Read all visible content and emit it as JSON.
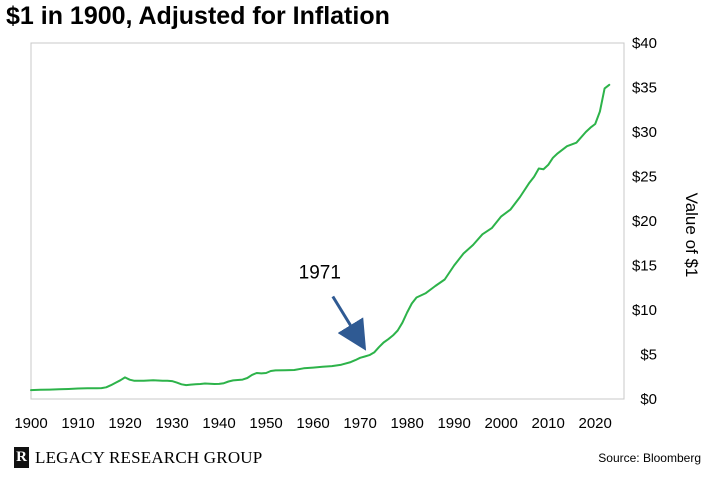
{
  "title": "$1 in 1900, Adjusted for Inflation",
  "footer": {
    "logo_mark": "R",
    "brand": "LEGACY RESEARCH GROUP",
    "source": "Source: Bloomberg"
  },
  "colors": {
    "line": "#2db34a",
    "arrow": "#2f5a93",
    "frame": "#c8c8c8"
  },
  "chart_data": {
    "type": "line",
    "title": "$1 in 1900, Adjusted for Inflation",
    "xlabel": "",
    "ylabel": "Value of $1",
    "xlim": [
      1900,
      2024
    ],
    "ylim": [
      0,
      40
    ],
    "xticks": [
      1900,
      1910,
      1920,
      1930,
      1940,
      1950,
      1960,
      1970,
      1980,
      1990,
      2000,
      2010,
      2020
    ],
    "xtick_labels": [
      "1900",
      "1910",
      "1920",
      "1930",
      "1940",
      "1950",
      "1960",
      "1970",
      "1980",
      "1990",
      "2000",
      "2010",
      "2020"
    ],
    "yticks": [
      0,
      5,
      10,
      15,
      20,
      25,
      30,
      35,
      40
    ],
    "ytick_labels": [
      "$0",
      "$5",
      "$10",
      "$15",
      "$20",
      "$25",
      "$30",
      "$35",
      "$40"
    ],
    "y_axis_side": "right",
    "grid": false,
    "annotations": [
      {
        "text": "1971",
        "x": 1971,
        "y": 5.0
      }
    ],
    "series": [
      {
        "color": "#2db34a",
        "x": [
          1900,
          1902,
          1904,
          1906,
          1908,
          1910,
          1912,
          1914,
          1915,
          1916,
          1917,
          1918,
          1919,
          1920,
          1921,
          1922,
          1924,
          1926,
          1928,
          1929,
          1930,
          1931,
          1932,
          1933,
          1934,
          1935,
          1936,
          1937,
          1938,
          1939,
          1940,
          1941,
          1942,
          1943,
          1944,
          1945,
          1946,
          1947,
          1948,
          1949,
          1950,
          1951,
          1952,
          1954,
          1956,
          1958,
          1960,
          1962,
          1964,
          1966,
          1968,
          1969,
          1970,
          1971,
          1972,
          1973,
          1974,
          1975,
          1976,
          1977,
          1978,
          1979,
          1980,
          1981,
          1982,
          1984,
          1986,
          1988,
          1990,
          1992,
          1994,
          1996,
          1998,
          2000,
          2002,
          2004,
          2006,
          2007,
          2008,
          2009,
          2010,
          2011,
          2012,
          2014,
          2016,
          2018,
          2019,
          2020,
          2021,
          2022,
          2023
        ],
        "y": [
          1.0,
          1.03,
          1.06,
          1.09,
          1.12,
          1.18,
          1.2,
          1.2,
          1.22,
          1.32,
          1.55,
          1.83,
          2.1,
          2.43,
          2.17,
          2.04,
          2.06,
          2.1,
          2.06,
          2.06,
          2.01,
          1.84,
          1.65,
          1.56,
          1.62,
          1.66,
          1.68,
          1.74,
          1.71,
          1.68,
          1.7,
          1.78,
          1.97,
          2.09,
          2.13,
          2.18,
          2.36,
          2.71,
          2.92,
          2.88,
          2.92,
          3.15,
          3.21,
          3.23,
          3.26,
          3.45,
          3.53,
          3.62,
          3.7,
          3.85,
          4.15,
          4.37,
          4.63,
          4.78,
          4.93,
          5.24,
          5.82,
          6.35,
          6.72,
          7.15,
          7.7,
          8.57,
          9.72,
          10.73,
          11.4,
          11.9,
          12.7,
          13.43,
          15.0,
          16.35,
          17.3,
          18.5,
          19.2,
          20.52,
          21.3,
          22.7,
          24.3,
          24.98,
          25.9,
          25.82,
          26.3,
          27.1,
          27.6,
          28.4,
          28.8,
          30.0,
          30.5,
          30.9,
          32.3,
          34.9,
          35.3
        ]
      }
    ]
  }
}
